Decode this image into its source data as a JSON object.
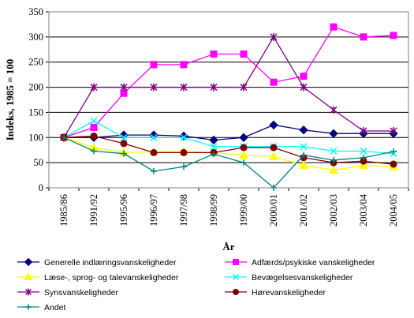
{
  "chart_data": {
    "type": "line",
    "title": "",
    "xlabel": "År",
    "ylabel": "Indeks, 1985 = 100",
    "ylim": [
      0,
      350
    ],
    "yticks": [
      0,
      50,
      100,
      150,
      200,
      250,
      300,
      350
    ],
    "grid": "horizontal",
    "legend_position": "bottom",
    "categories": [
      "1985/86",
      "1991/92",
      "1995/96",
      "1996/97",
      "1997/98",
      "1998/99",
      "1999/00",
      "2000/01",
      "2001/02",
      "2002/03",
      "2003/04",
      "2004/05"
    ],
    "series": [
      {
        "name": "Generelle indlæringsvanskeligheder",
        "color": "#000080",
        "marker": "diamond",
        "values": [
          100,
          100,
          105,
          105,
          103,
          95,
          100,
          125,
          115,
          108,
          108,
          108
        ]
      },
      {
        "name": "Adfærds/psykiske vanskeligheder",
        "color": "#ff00ff",
        "marker": "square",
        "values": [
          100,
          120,
          188,
          245,
          245,
          266,
          266,
          210,
          222,
          320,
          300,
          303
        ]
      },
      {
        "name": "Læse-, sprog- og talevanskeligheder",
        "color": "#ffff00",
        "marker": "triangle",
        "values": [
          100,
          80,
          70,
          72,
          72,
          70,
          65,
          62,
          45,
          35,
          45,
          42
        ]
      },
      {
        "name": "Bevægelsesvanskeligheder",
        "color": "#00ffff",
        "marker": "x",
        "values": [
          100,
          133,
          100,
          100,
          100,
          82,
          82,
          82,
          82,
          73,
          73,
          68
        ]
      },
      {
        "name": "Synsvanskeligheder",
        "color": "#800080",
        "marker": "star",
        "values": [
          100,
          200,
          200,
          200,
          200,
          200,
          200,
          300,
          200,
          155,
          113,
          113
        ]
      },
      {
        "name": "Hørevanskeligheder",
        "color": "#800000",
        "marker": "circle",
        "values": [
          100,
          103,
          88,
          70,
          70,
          70,
          80,
          80,
          60,
          50,
          53,
          47
        ]
      },
      {
        "name": "Andet",
        "color": "#008080",
        "marker": "plus",
        "values": [
          100,
          73,
          68,
          33,
          42,
          67,
          50,
          0,
          65,
          55,
          60,
          72
        ]
      }
    ]
  }
}
